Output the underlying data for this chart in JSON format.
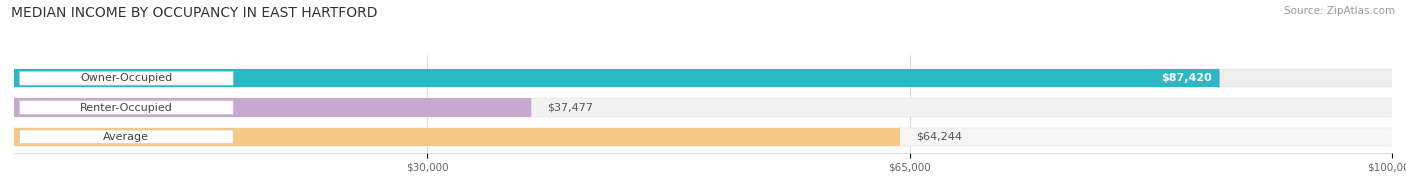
{
  "title": "MEDIAN INCOME BY OCCUPANCY IN EAST HARTFORD",
  "source": "Source: ZipAtlas.com",
  "categories": [
    "Owner-Occupied",
    "Renter-Occupied",
    "Average"
  ],
  "values": [
    87420,
    37477,
    64244
  ],
  "value_labels": [
    "$87,420",
    "$37,477",
    "$64,244"
  ],
  "bar_colors": [
    "#2ab8c5",
    "#c8a8d0",
    "#f5c888"
  ],
  "bar_bg_colors": [
    "#eeeeee",
    "#f2f2f2",
    "#f5f5f5"
  ],
  "xmax": 100000,
  "xticks": [
    30000,
    65000,
    100000
  ],
  "xtick_labels": [
    "$30,000",
    "$65,000",
    "$100,000"
  ],
  "title_fontsize": 10,
  "source_fontsize": 7.5,
  "label_fontsize": 8,
  "value_fontsize": 8,
  "background_color": "#ffffff",
  "value_label_inside": [
    true,
    false,
    false
  ]
}
